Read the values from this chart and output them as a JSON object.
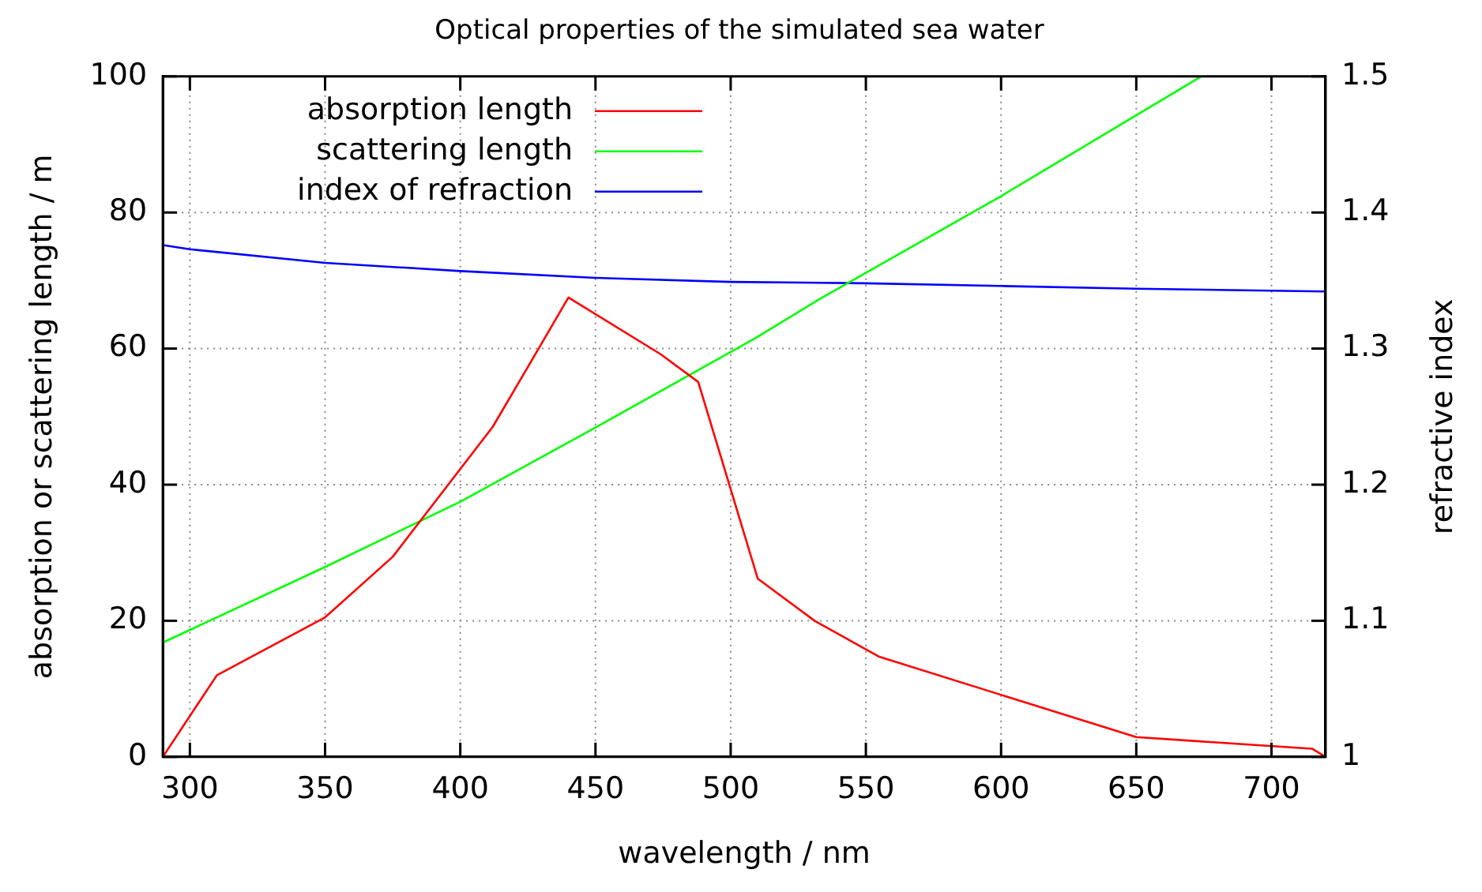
{
  "chart_data": {
    "type": "line",
    "title": "Optical properties of the simulated sea water",
    "xlabel": "wavelength / nm",
    "ylabel": "absorption or scattering length / m",
    "y2label": "refractive index",
    "xlim": [
      290,
      720
    ],
    "xticks": [
      300,
      350,
      400,
      450,
      500,
      550,
      600,
      650,
      700
    ],
    "ylim": [
      0,
      100
    ],
    "yticks": [
      0,
      20,
      40,
      60,
      80,
      100
    ],
    "y2lim": [
      1,
      1.5
    ],
    "y2ticks": [
      1,
      1.1,
      1.2,
      1.3,
      1.4,
      1.5
    ],
    "grid": true,
    "legend": "top left",
    "marker": "none",
    "line_style": "solid",
    "series": [
      {
        "name": "absorption length",
        "color": "#ff0000",
        "x": [
          290,
          310,
          350,
          375,
          412,
          425,
          440,
          474,
          488,
          510,
          531,
          555,
          650,
          715,
          720
        ],
        "values": [
          0,
          12.0,
          20.5,
          29.4,
          48.5,
          57.3,
          67.5,
          59.2,
          55.1,
          26.2,
          20.0,
          14.7,
          2.9,
          1.2,
          0
        ]
      },
      {
        "name": "scattering length",
        "color": "#00ff00",
        "x": [
          290,
          350,
          400,
          450,
          509,
          533,
          600,
          674
        ],
        "values": [
          16.8,
          27.9,
          37.5,
          48.4,
          61.5,
          67.3,
          82.4,
          100
        ]
      },
      {
        "name": "index of refraction",
        "color": "#0000ff",
        "axis": "y2",
        "x": [
          290,
          300,
          350,
          400,
          450,
          500,
          550,
          600,
          650,
          720
        ],
        "values": [
          1.376,
          1.373,
          1.363,
          1.357,
          1.352,
          1.349,
          1.348,
          1.346,
          1.344,
          1.342
        ]
      }
    ]
  }
}
